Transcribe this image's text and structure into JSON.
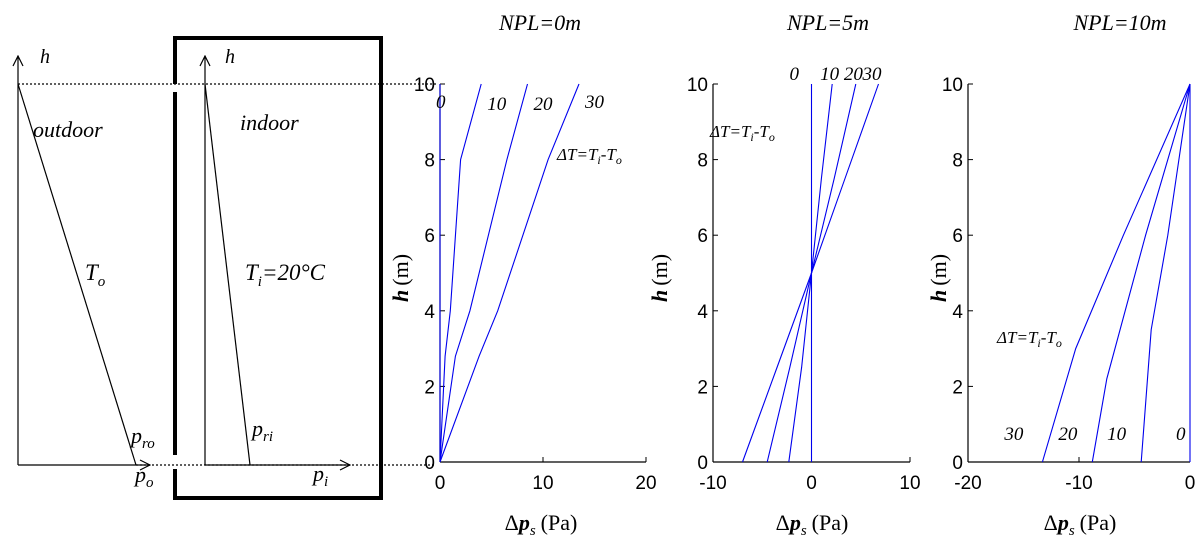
{
  "schematic": {
    "outdoor_axis_label": "h",
    "indoor_axis_label": "h",
    "outdoor_label": "outdoor",
    "indoor_label": "indoor",
    "outdoor_temp": "T",
    "outdoor_temp_sub": "o",
    "indoor_temp_prefix": "T",
    "indoor_temp_sub": "i",
    "indoor_temp_value": "=20°C",
    "p_ro": "p",
    "p_ro_sub": "ro",
    "p_o": "p",
    "p_o_sub": "o",
    "p_ri": "p",
    "p_ri_sub": "ri",
    "p_i": "p",
    "p_i_sub": "i"
  },
  "delta_t_annotation": {
    "delta": "Δ",
    "t1": "T",
    "eq": "=",
    "t2": "T",
    "sub_i": "i",
    "minus": "-",
    "t3": "T",
    "sub_o": "o"
  },
  "chart_data": [
    {
      "type": "line",
      "title": "NPL=0m",
      "xlabel_delta": "Δ",
      "xlabel_p": "p",
      "xlabel_sub": "s",
      "xlabel_unit": "(Pa)",
      "ylabel_h": "h",
      "ylabel_unit": "(m)",
      "xlim": [
        0,
        20
      ],
      "ylim": [
        0,
        10
      ],
      "xticks": [
        "0",
        "10",
        "20"
      ],
      "yticks": [
        "0",
        "2",
        "4",
        "6",
        "8",
        "10"
      ],
      "series": [
        {
          "name": "0",
          "x": [
            0,
            0
          ],
          "y": [
            0,
            10
          ]
        },
        {
          "name": "10",
          "x": [
            0,
            0.5,
            1.0,
            2.0,
            4.0
          ],
          "y": [
            0,
            2.8,
            4.0,
            8.0,
            10
          ]
        },
        {
          "name": "20",
          "x": [
            0,
            1.5,
            2.9,
            6.5,
            8.5
          ],
          "y": [
            0,
            2.8,
            4.0,
            8.0,
            10
          ]
        },
        {
          "name": "30",
          "x": [
            0,
            3.8,
            5.6,
            10.5,
            13.5
          ],
          "y": [
            0,
            2.8,
            4.0,
            8.0,
            10
          ]
        }
      ]
    },
    {
      "type": "line",
      "title": "NPL=5m",
      "xlabel_delta": "Δ",
      "xlabel_p": "p",
      "xlabel_sub": "s",
      "xlabel_unit": "(Pa)",
      "ylabel_h": "h",
      "ylabel_unit": "(m)",
      "xlim": [
        -10,
        10
      ],
      "ylim": [
        0,
        10
      ],
      "xticks": [
        "-10",
        "0",
        "10"
      ],
      "yticks": [
        "0",
        "2",
        "4",
        "6",
        "8",
        "10"
      ],
      "series": [
        {
          "name": "0",
          "x": [
            0,
            0
          ],
          "y": [
            0,
            10
          ]
        },
        {
          "name": "10",
          "x": [
            -2.3,
            -1.0,
            0,
            1.0,
            2.1
          ],
          "y": [
            0,
            2.5,
            5,
            7.5,
            10
          ]
        },
        {
          "name": "20",
          "x": [
            -4.5,
            -2.2,
            0,
            2.3,
            4.5
          ],
          "y": [
            0,
            2.5,
            5,
            7.5,
            10
          ]
        },
        {
          "name": "30",
          "x": [
            -7.0,
            -3.5,
            0,
            3.4,
            6.8
          ],
          "y": [
            0,
            2.5,
            5,
            7.5,
            10
          ]
        }
      ]
    },
    {
      "type": "line",
      "title": "NPL=10m",
      "xlabel_delta": "Δ",
      "xlabel_p": "p",
      "xlabel_sub": "s",
      "xlabel_unit": "(Pa)",
      "ylabel_h": "h",
      "ylabel_unit": "(m)",
      "xlim": [
        -20,
        0
      ],
      "ylim": [
        0,
        10
      ],
      "xticks": [
        "-20",
        "-10",
        "0"
      ],
      "yticks": [
        "0",
        "2",
        "4",
        "6",
        "8",
        "10"
      ],
      "series": [
        {
          "name": "0",
          "x": [
            0,
            0
          ],
          "y": [
            0,
            10
          ]
        },
        {
          "name": "10",
          "x": [
            -4.4,
            -3.5,
            -2.0,
            0
          ],
          "y": [
            0,
            3.5,
            6.0,
            10
          ]
        },
        {
          "name": "20",
          "x": [
            -8.8,
            -7.5,
            -4.0,
            0
          ],
          "y": [
            0,
            2.2,
            6.0,
            10
          ]
        },
        {
          "name": "30",
          "x": [
            -13.3,
            -10.3,
            -6.0,
            0
          ],
          "y": [
            0,
            3.0,
            6.0,
            10
          ]
        }
      ]
    }
  ]
}
